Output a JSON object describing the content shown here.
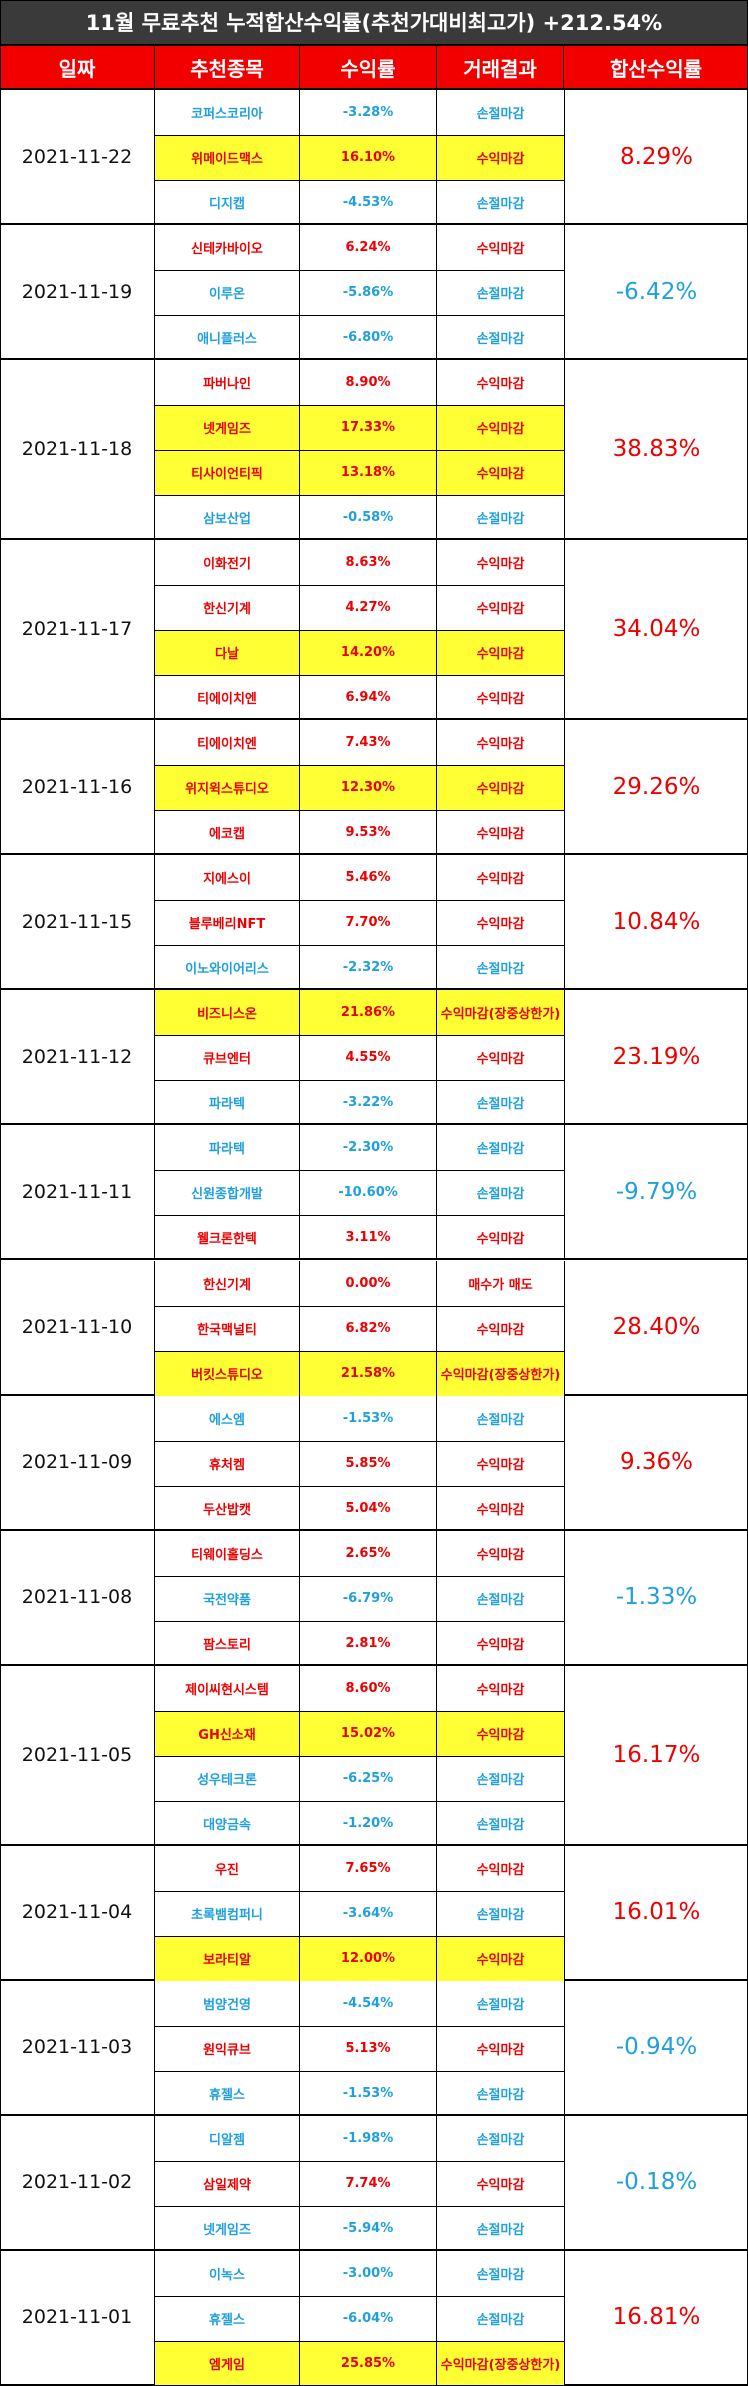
{
  "title": "11월 무료추천 누적합산수익률(추천가대비최고가) +212.54%",
  "headers": [
    "일짜",
    "추천종목",
    "수익률",
    "거래결과",
    "합산수익률"
  ],
  "colors": {
    "red": "#ee0000",
    "blue": "#1fa0dc",
    "highlight": "#ffff33",
    "header_bg": "#f20000",
    "title_bg": "#3a3a3a"
  },
  "groups": [
    {
      "date": "2021-11-22",
      "total": "8.29%",
      "total_color": "red",
      "rows": [
        {
          "name": "코퍼스코리아",
          "rate": "-3.28%",
          "result": "손절마감",
          "color": "blue",
          "hl": false
        },
        {
          "name": "위메이드맥스",
          "rate": "16.10%",
          "result": "수익마감",
          "color": "red",
          "hl": true
        },
        {
          "name": "디지캡",
          "rate": "-4.53%",
          "result": "손절마감",
          "color": "blue",
          "hl": false
        }
      ]
    },
    {
      "date": "2021-11-19",
      "total": "-6.42%",
      "total_color": "blue",
      "rows": [
        {
          "name": "신테카바이오",
          "rate": "6.24%",
          "result": "수익마감",
          "color": "red",
          "hl": false
        },
        {
          "name": "이루온",
          "rate": "-5.86%",
          "result": "손절마감",
          "color": "blue",
          "hl": false
        },
        {
          "name": "애니플러스",
          "rate": "-6.80%",
          "result": "손절마감",
          "color": "blue",
          "hl": false
        }
      ]
    },
    {
      "date": "2021-11-18",
      "total": "38.83%",
      "total_color": "red",
      "rows": [
        {
          "name": "파버나인",
          "rate": "8.90%",
          "result": "수익마감",
          "color": "red",
          "hl": false
        },
        {
          "name": "넷게임즈",
          "rate": "17.33%",
          "result": "수익마감",
          "color": "red",
          "hl": true
        },
        {
          "name": "티사이언티픽",
          "rate": "13.18%",
          "result": "수익마감",
          "color": "red",
          "hl": true
        },
        {
          "name": "삼보산업",
          "rate": "-0.58%",
          "result": "손절마감",
          "color": "blue",
          "hl": false
        }
      ]
    },
    {
      "date": "2021-11-17",
      "total": "34.04%",
      "total_color": "red",
      "rows": [
        {
          "name": "이화전기",
          "rate": "8.63%",
          "result": "수익마감",
          "color": "red",
          "hl": false
        },
        {
          "name": "한신기계",
          "rate": "4.27%",
          "result": "수익마감",
          "color": "red",
          "hl": false
        },
        {
          "name": "다날",
          "rate": "14.20%",
          "result": "수익마감",
          "color": "red",
          "hl": true
        },
        {
          "name": "티에이치엔",
          "rate": "6.94%",
          "result": "수익마감",
          "color": "red",
          "hl": false
        }
      ]
    },
    {
      "date": "2021-11-16",
      "total": "29.26%",
      "total_color": "red",
      "rows": [
        {
          "name": "티에이치엔",
          "rate": "7.43%",
          "result": "수익마감",
          "color": "red",
          "hl": false
        },
        {
          "name": "위지윅스튜디오",
          "rate": "12.30%",
          "result": "수익마감",
          "color": "red",
          "hl": true
        },
        {
          "name": "에코캡",
          "rate": "9.53%",
          "result": "수익마감",
          "color": "red",
          "hl": false
        }
      ]
    },
    {
      "date": "2021-11-15",
      "total": "10.84%",
      "total_color": "red",
      "rows": [
        {
          "name": "지에스이",
          "rate": "5.46%",
          "result": "수익마감",
          "color": "red",
          "hl": false
        },
        {
          "name": "블루베리NFT",
          "rate": "7.70%",
          "result": "수익마감",
          "color": "red",
          "hl": false
        },
        {
          "name": "이노와이어리스",
          "rate": "-2.32%",
          "result": "손절마감",
          "color": "blue",
          "hl": false
        }
      ]
    },
    {
      "date": "2021-11-12",
      "total": "23.19%",
      "total_color": "red",
      "rows": [
        {
          "name": "비즈니스온",
          "rate": "21.86%",
          "result": "수익마감(장중상한가)",
          "color": "red",
          "hl": true
        },
        {
          "name": "큐브엔터",
          "rate": "4.55%",
          "result": "수익마감",
          "color": "red",
          "hl": false
        },
        {
          "name": "파라텍",
          "rate": "-3.22%",
          "result": "손절마감",
          "color": "blue",
          "hl": false
        }
      ]
    },
    {
      "date": "2021-11-11",
      "total": "-9.79%",
      "total_color": "blue",
      "rows": [
        {
          "name": "파라텍",
          "rate": "-2.30%",
          "result": "손절마감",
          "color": "blue",
          "hl": false
        },
        {
          "name": "신원종합개발",
          "rate": "-10.60%",
          "result": "손절마감",
          "color": "blue",
          "hl": false
        },
        {
          "name": "웰크론한텍",
          "rate": "3.11%",
          "result": "수익마감",
          "color": "red",
          "hl": false
        }
      ]
    },
    {
      "date": "2021-11-10",
      "total": "28.40%",
      "total_color": "red",
      "rows": [
        {
          "name": "한신기계",
          "rate": "0.00%",
          "result": "매수가 매도",
          "color": "red",
          "hl": false
        },
        {
          "name": "한국맥널티",
          "rate": "6.82%",
          "result": "수익마감",
          "color": "red",
          "hl": false
        },
        {
          "name": "버킷스튜디오",
          "rate": "21.58%",
          "result": "수익마감(장중상한가)",
          "color": "red",
          "hl": true
        }
      ]
    },
    {
      "date": "2021-11-09",
      "total": "9.36%",
      "total_color": "red",
      "rows": [
        {
          "name": "에스엠",
          "rate": "-1.53%",
          "result": "손절마감",
          "color": "blue",
          "hl": false
        },
        {
          "name": "휴처켐",
          "rate": "5.85%",
          "result": "수익마감",
          "color": "red",
          "hl": false
        },
        {
          "name": "두산밥캣",
          "rate": "5.04%",
          "result": "수익마감",
          "color": "red",
          "hl": false
        }
      ]
    },
    {
      "date": "2021-11-08",
      "total": "-1.33%",
      "total_color": "blue",
      "rows": [
        {
          "name": "티웨이홀딩스",
          "rate": "2.65%",
          "result": "수익마감",
          "color": "red",
          "hl": false
        },
        {
          "name": "국전약품",
          "rate": "-6.79%",
          "result": "손절마감",
          "color": "blue",
          "hl": false
        },
        {
          "name": "팜스토리",
          "rate": "2.81%",
          "result": "수익마감",
          "color": "red",
          "hl": false
        }
      ]
    },
    {
      "date": "2021-11-05",
      "total": "16.17%",
      "total_color": "red",
      "rows": [
        {
          "name": "제이씨현시스템",
          "rate": "8.60%",
          "result": "수익마감",
          "color": "red",
          "hl": false
        },
        {
          "name": "GH신소재",
          "rate": "15.02%",
          "result": "수익마감",
          "color": "red",
          "hl": true
        },
        {
          "name": "성우테크론",
          "rate": "-6.25%",
          "result": "손절마감",
          "color": "blue",
          "hl": false
        },
        {
          "name": "대양금속",
          "rate": "-1.20%",
          "result": "손절마감",
          "color": "blue",
          "hl": false
        }
      ]
    },
    {
      "date": "2021-11-04",
      "total": "16.01%",
      "total_color": "red",
      "rows": [
        {
          "name": "우진",
          "rate": "7.65%",
          "result": "수익마감",
          "color": "red",
          "hl": false
        },
        {
          "name": "초록뱀컴퍼니",
          "rate": "-3.64%",
          "result": "손절마감",
          "color": "blue",
          "hl": false
        },
        {
          "name": "보라티알",
          "rate": "12.00%",
          "result": "수익마감",
          "color": "red",
          "hl": true
        }
      ]
    },
    {
      "date": "2021-11-03",
      "total": "-0.94%",
      "total_color": "blue",
      "rows": [
        {
          "name": "범양건영",
          "rate": "-4.54%",
          "result": "손절마감",
          "color": "blue",
          "hl": false
        },
        {
          "name": "원익큐브",
          "rate": "5.13%",
          "result": "수익마감",
          "color": "red",
          "hl": false
        },
        {
          "name": "휴젤스",
          "rate": "-1.53%",
          "result": "손절마감",
          "color": "blue",
          "hl": false
        }
      ]
    },
    {
      "date": "2021-11-02",
      "total": "-0.18%",
      "total_color": "blue",
      "rows": [
        {
          "name": "디알젬",
          "rate": "-1.98%",
          "result": "손절마감",
          "color": "blue",
          "hl": false
        },
        {
          "name": "삼일제약",
          "rate": "7.74%",
          "result": "수익마감",
          "color": "red",
          "hl": false
        },
        {
          "name": "넷게임즈",
          "rate": "-5.94%",
          "result": "손절마감",
          "color": "blue",
          "hl": false
        }
      ]
    },
    {
      "date": "2021-11-01",
      "total": "16.81%",
      "total_color": "red",
      "rows": [
        {
          "name": "이녹스",
          "rate": "-3.00%",
          "result": "손절마감",
          "color": "blue",
          "hl": false
        },
        {
          "name": "휴젤스",
          "rate": "-6.04%",
          "result": "손절마감",
          "color": "blue",
          "hl": false
        },
        {
          "name": "엠게임",
          "rate": "25.85%",
          "result": "수익마감(장중상한가)",
          "color": "red",
          "hl": true
        }
      ]
    }
  ]
}
